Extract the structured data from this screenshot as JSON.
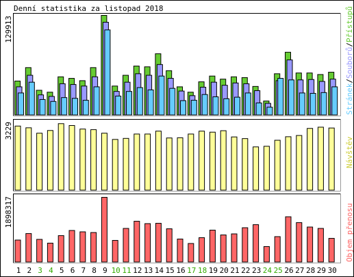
{
  "title": "Denní statistika za listopad 2018",
  "colors": {
    "hits": "#66cc33",
    "files": "#9999ff",
    "pages": "#66ccff",
    "visits": "#ffff99",
    "kbytes": "#ff6666",
    "weekday": "#000000",
    "weekend": "#33aa00",
    "frame": "#000000",
    "background": "#ffffff"
  },
  "chart_data": [
    {
      "type": "bar",
      "panel": "hits-files-pages",
      "categories": [
        "1",
        "2",
        "3",
        "4",
        "5",
        "6",
        "7",
        "8",
        "9",
        "10",
        "11",
        "12",
        "13",
        "14",
        "15",
        "16",
        "17",
        "18",
        "19",
        "20",
        "21",
        "22",
        "23",
        "24",
        "25",
        "26",
        "27",
        "28",
        "29",
        "30"
      ],
      "weekend_days": [
        "3",
        "4",
        "10",
        "11",
        "17",
        "18",
        "24",
        "25"
      ],
      "ymax": 129913,
      "ymax_label": "129913",
      "ylabel_parts": [
        "Stránek",
        "/",
        "Souborů",
        "/",
        "Přístupů"
      ],
      "series": [
        {
          "name": "Přístupů",
          "values": [
            44500,
            62000,
            32500,
            30000,
            50000,
            48000,
            45000,
            62000,
            129913,
            38000,
            52000,
            64000,
            63000,
            80000,
            58000,
            37000,
            30000,
            43500,
            51000,
            47000,
            50000,
            49000,
            37500,
            18500,
            54000,
            82000,
            55000,
            55000,
            53000,
            56000
          ]
        },
        {
          "name": "Souborů",
          "values": [
            37000,
            52000,
            26500,
            24500,
            41000,
            40000,
            38000,
            50000,
            121000,
            31000,
            43000,
            54000,
            52000,
            66000,
            48000,
            31500,
            25500,
            36500,
            43000,
            39000,
            42000,
            41000,
            32000,
            15500,
            45000,
            72000,
            46000,
            46500,
            44000,
            47000
          ]
        },
        {
          "name": "Stránek",
          "values": [
            29000,
            43000,
            20500,
            18000,
            23000,
            22000,
            19500,
            37000,
            111000,
            25000,
            31000,
            36000,
            33000,
            51000,
            35000,
            19000,
            19500,
            27000,
            24000,
            21500,
            23500,
            29000,
            16000,
            10500,
            48000,
            46000,
            29000,
            28500,
            29500,
            37000
          ]
        }
      ]
    },
    {
      "type": "bar",
      "panel": "visits",
      "categories": [
        "1",
        "2",
        "3",
        "4",
        "5",
        "6",
        "7",
        "8",
        "9",
        "10",
        "11",
        "12",
        "13",
        "14",
        "15",
        "16",
        "17",
        "18",
        "19",
        "20",
        "21",
        "22",
        "23",
        "24",
        "25",
        "26",
        "27",
        "28",
        "29",
        "30"
      ],
      "ymax": 3229,
      "ymax_label": "3229",
      "ylabel": "Návštěv",
      "series": [
        {
          "name": "Návštěv",
          "values": [
            3104,
            3020,
            2760,
            2890,
            3220,
            3130,
            2960,
            2930,
            2760,
            2460,
            2510,
            2720,
            2720,
            2860,
            2530,
            2540,
            2720,
            2860,
            2810,
            2880,
            2580,
            2500,
            2100,
            2130,
            2420,
            2590,
            2650,
            2990,
            3050,
            3010
          ]
        }
      ]
    },
    {
      "type": "bar",
      "panel": "kbytes",
      "categories": [
        "1",
        "2",
        "3",
        "4",
        "5",
        "6",
        "7",
        "8",
        "9",
        "10",
        "11",
        "12",
        "13",
        "14",
        "15",
        "16",
        "17",
        "18",
        "19",
        "20",
        "21",
        "22",
        "23",
        "24",
        "25",
        "26",
        "27",
        "28",
        "29",
        "30"
      ],
      "ymax": 1898317,
      "ymax_label": "1898317",
      "ylabel": "Objem přenosu",
      "series": [
        {
          "name": "Objem přenosu",
          "values": [
            650000,
            840000,
            670000,
            560000,
            780000,
            930000,
            890000,
            870000,
            1898317,
            640000,
            990000,
            1200000,
            1130000,
            1140000,
            980000,
            680000,
            550000,
            720000,
            940000,
            800000,
            830000,
            1010000,
            1100000,
            460000,
            750000,
            1330000,
            1160000,
            1030000,
            990000,
            700000
          ]
        }
      ]
    }
  ]
}
